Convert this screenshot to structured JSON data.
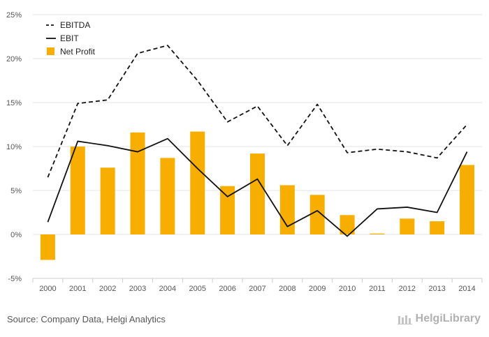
{
  "chart_data": {
    "type": "bar+line",
    "categories": [
      "2000",
      "2001",
      "2002",
      "2003",
      "2004",
      "2005",
      "2006",
      "2007",
      "2008",
      "2009",
      "2010",
      "2011",
      "2012",
      "2013",
      "2014"
    ],
    "series": [
      {
        "name": "EBITDA",
        "type": "line",
        "style": "dashed",
        "color": "#111111",
        "values": [
          6.5,
          14.9,
          15.3,
          20.6,
          21.5,
          17.5,
          12.8,
          14.6,
          10.1,
          14.8,
          9.3,
          9.7,
          9.4,
          8.7,
          12.5
        ]
      },
      {
        "name": "EBIT",
        "type": "line",
        "style": "solid",
        "color": "#111111",
        "values": [
          1.4,
          10.6,
          10.1,
          9.4,
          10.9,
          7.5,
          4.3,
          6.3,
          0.9,
          2.7,
          -0.2,
          2.9,
          3.1,
          2.5,
          9.4
        ]
      },
      {
        "name": "Net Profit",
        "type": "bar",
        "color": "#f7ae00",
        "values": [
          -2.9,
          10.0,
          7.6,
          11.6,
          8.7,
          11.7,
          5.5,
          9.2,
          5.6,
          4.5,
          2.2,
          0.1,
          1.8,
          1.5,
          7.9
        ]
      }
    ],
    "yticks": [
      "-5%",
      "0%",
      "5%",
      "10%",
      "15%",
      "20%",
      "25%"
    ],
    "ylim": [
      -5,
      25
    ],
    "grid": true,
    "legend_position": "top-left"
  },
  "footer": {
    "source": "Source: Company Data, Helgi Analytics",
    "brand": "HelgiLibrary"
  }
}
